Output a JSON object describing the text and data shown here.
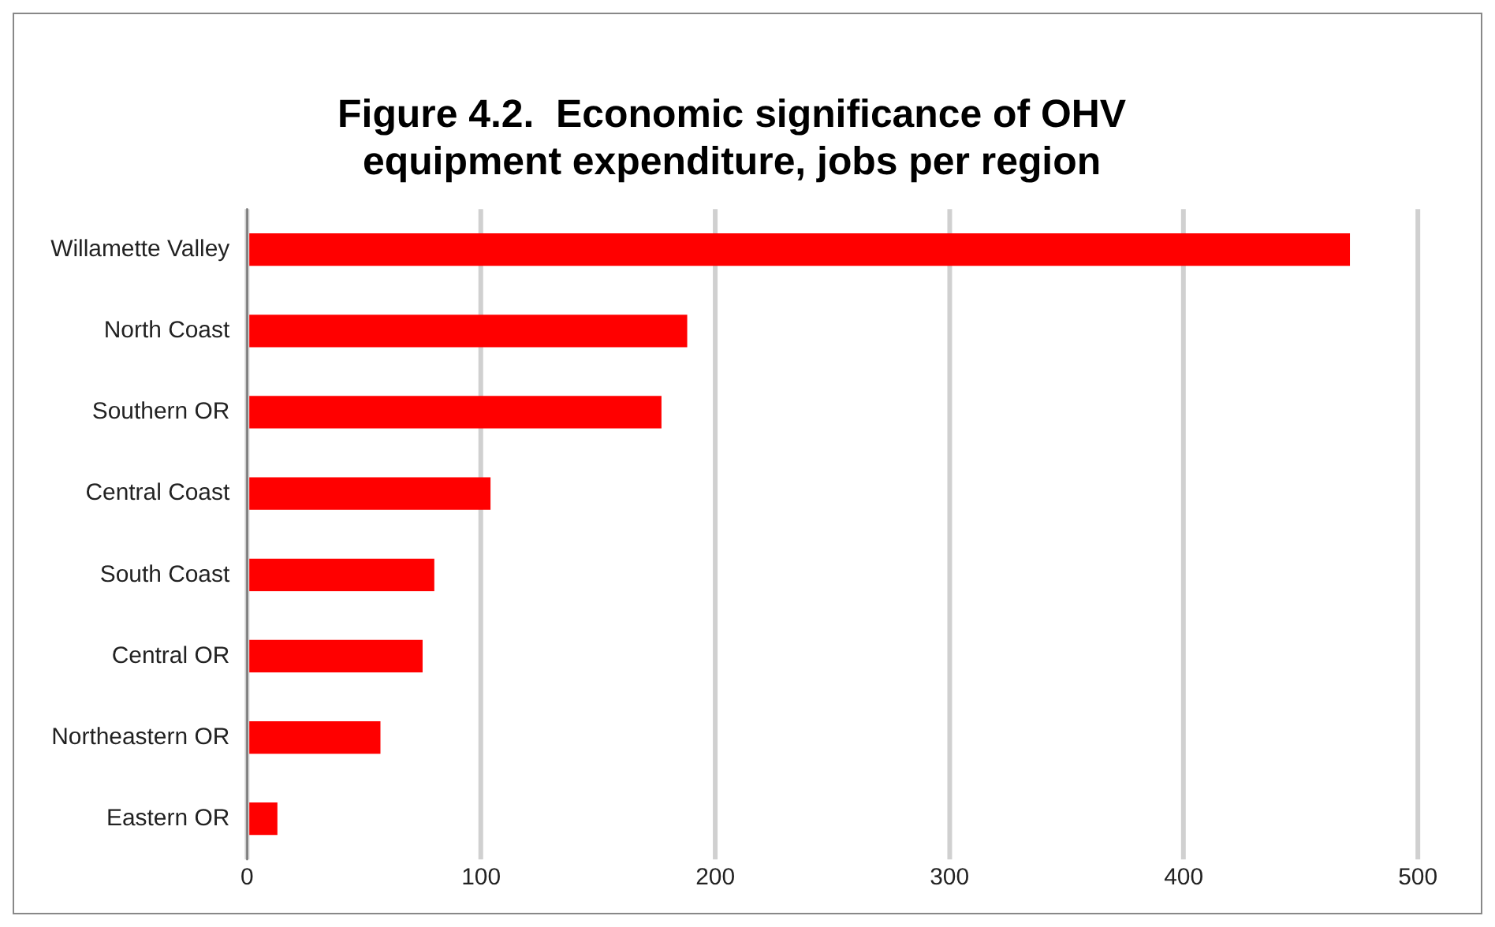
{
  "chart_data": {
    "type": "bar",
    "orientation": "horizontal",
    "title": "Figure 4.2.  Economic significance of OHV equipment expenditure, jobs per region",
    "categories": [
      "Willamette Valley",
      "North Coast",
      "Southern OR",
      "Central Coast",
      "South Coast",
      "Central OR",
      "Northeastern OR",
      "Eastern OR"
    ],
    "values": [
      471,
      188,
      177,
      104,
      80,
      75,
      57,
      13
    ],
    "color": "#ff0000",
    "xlim": [
      0,
      500
    ],
    "xticks": [
      0,
      100,
      200,
      300,
      400,
      500
    ],
    "grid": "x",
    "legend": false
  }
}
